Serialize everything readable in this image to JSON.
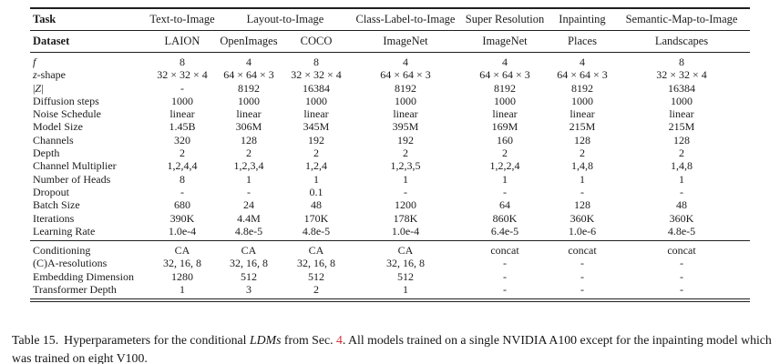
{
  "colors": {
    "text": "#1b1b1b",
    "rule": "#1f1f1f",
    "reference_red": "#d2333c",
    "background": "#ffffff"
  },
  "table": {
    "header": {
      "task_label": "Task",
      "tasks": [
        {
          "label": "Text-to-Image",
          "span": 1
        },
        {
          "label": "Layout-to-Image",
          "span": 2
        },
        {
          "label": "Class-Label-to-Image",
          "span": 1
        },
        {
          "label": "Super Resolution",
          "span": 1
        },
        {
          "label": "Inpainting",
          "span": 1
        },
        {
          "label": "Semantic-Map-to-Image",
          "span": 1
        }
      ],
      "dataset_label": "Dataset",
      "datasets": [
        "LAION",
        "OpenImages",
        "COCO",
        "ImageNet",
        "ImageNet",
        "Places",
        "Landscapes"
      ]
    },
    "sections": [
      {
        "name": "model-hyperparameters",
        "rows": [
          {
            "segments": [
              {
                "t": "f",
                "i": true
              }
            ],
            "values": [
              "8",
              "4",
              "8",
              "4",
              "4",
              "4",
              "8"
            ]
          },
          {
            "segments": [
              {
                "t": "z",
                "i": true
              },
              {
                "t": "-shape"
              }
            ],
            "values": [
              "32 × 32 × 4",
              "64 × 64 × 3",
              "32 × 32 × 4",
              "64 × 64 × 3",
              "64 × 64 × 3",
              "64 × 64 × 3",
              "32 × 32 × 4"
            ]
          },
          {
            "segments": [
              {
                "t": "|"
              },
              {
                "t": "Z",
                "i": true
              },
              {
                "t": "|"
              }
            ],
            "values": [
              "-",
              "8192",
              "16384",
              "8192",
              "8192",
              "8192",
              "16384"
            ]
          },
          {
            "label": "Diffusion steps",
            "values": [
              "1000",
              "1000",
              "1000",
              "1000",
              "1000",
              "1000",
              "1000"
            ]
          },
          {
            "label": "Noise Schedule",
            "values": [
              "linear",
              "linear",
              "linear",
              "linear",
              "linear",
              "linear",
              "linear"
            ]
          },
          {
            "label": "Model Size",
            "values": [
              "1.45B",
              "306M",
              "345M",
              "395M",
              "169M",
              "215M",
              "215M"
            ]
          },
          {
            "label": "Channels",
            "values": [
              "320",
              "128",
              "192",
              "192",
              "160",
              "128",
              "128"
            ]
          },
          {
            "label": "Depth",
            "values": [
              "2",
              "2",
              "2",
              "2",
              "2",
              "2",
              "2"
            ]
          },
          {
            "label": "Channel Multiplier",
            "values": [
              "1,2,4,4",
              "1,2,3,4",
              "1,2,4",
              "1,2,3,5",
              "1,2,2,4",
              "1,4,8",
              "1,4,8"
            ]
          },
          {
            "label": "Number of Heads",
            "values": [
              "8",
              "1",
              "1",
              "1",
              "1",
              "1",
              "1"
            ]
          },
          {
            "label": "Dropout",
            "values": [
              "-",
              "-",
              "0.1",
              "-",
              "-",
              "-",
              "-"
            ]
          },
          {
            "label": "Batch Size",
            "values": [
              "680",
              "24",
              "48",
              "1200",
              "64",
              "128",
              "48"
            ]
          },
          {
            "label": "Iterations",
            "values": [
              "390K",
              "4.4M",
              "170K",
              "178K",
              "860K",
              "360K",
              "360K"
            ]
          },
          {
            "label": "Learning Rate",
            "values": [
              "1.0e-4",
              "4.8e-5",
              "4.8e-5",
              "1.0e-4",
              "6.4e-5",
              "1.0e-6",
              "4.8e-5"
            ]
          }
        ]
      },
      {
        "name": "conditioning",
        "rows": [
          {
            "label": "Conditioning",
            "values": [
              "CA",
              "CA",
              "CA",
              "CA",
              "concat",
              "concat",
              "concat"
            ]
          },
          {
            "label": "(C)A-resolutions",
            "values": [
              "32, 16, 8",
              "32, 16, 8",
              "32, 16, 8",
              "32, 16, 8",
              "-",
              "-",
              "-"
            ]
          },
          {
            "label": "Embedding Dimension",
            "values": [
              "1280",
              "512",
              "512",
              "512",
              "-",
              "-",
              "-"
            ]
          },
          {
            "label": "Transformer Depth",
            "values": [
              "1",
              "3",
              "2",
              "1",
              "-",
              "-",
              "-"
            ]
          }
        ]
      }
    ]
  },
  "caption": {
    "segments": [
      {
        "t": "Table 15.",
        "sep": true
      },
      {
        "t": "Hyperparameters for the conditional "
      },
      {
        "t": "LDMs",
        "i": true
      },
      {
        "t": " from Sec. "
      },
      {
        "t": "4",
        "link": true
      },
      {
        "t": ". All models trained on a single NVIDIA A100 except for the inpainting model which was trained on eight V100."
      }
    ]
  }
}
